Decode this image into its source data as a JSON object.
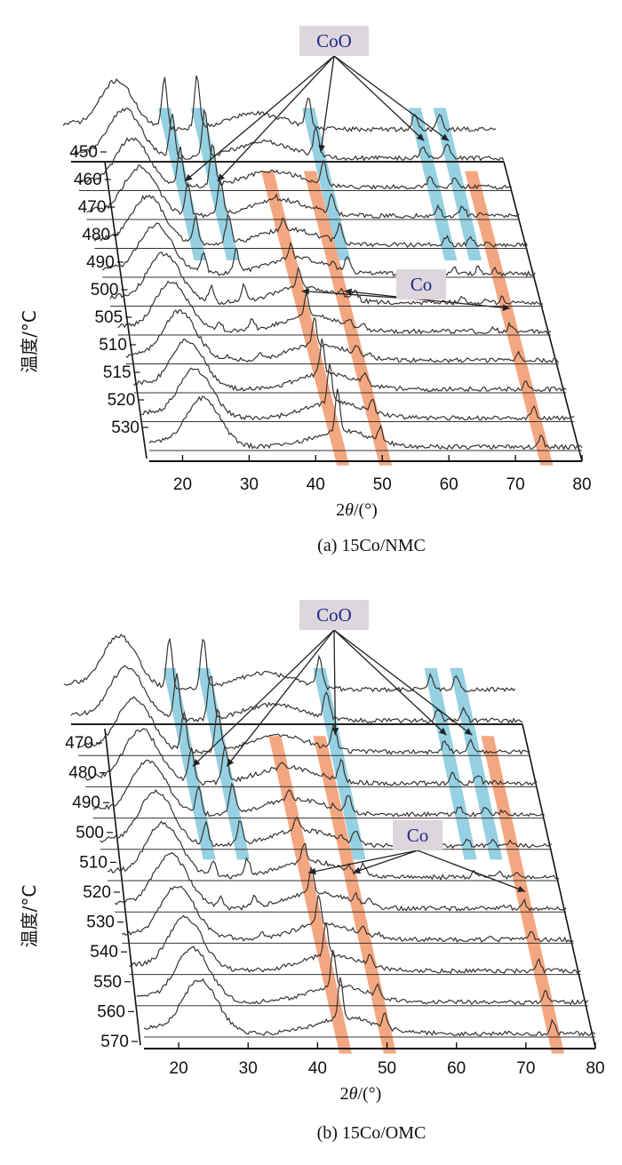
{
  "chart_data": [
    {
      "type": "line",
      "panel_id": "a",
      "caption": "(a) 15Co/NMC",
      "xlabel_prefix": "2",
      "xlabel_theta": "θ",
      "xlabel_suffix": "/(°)",
      "ylabel": "温度/°C",
      "xlim": [
        15,
        80
      ],
      "xticks": [
        "20",
        "30",
        "40",
        "50",
        "60",
        "70",
        "80"
      ],
      "temperatures": [
        "450",
        "460",
        "470",
        "480",
        "490",
        "500",
        "505",
        "510",
        "515",
        "520",
        "530"
      ],
      "annotations": [
        {
          "label": "CoO",
          "phase": "CoO",
          "peaks_2theta": [
            30.2,
            35.1,
            51.8,
            67.8,
            71.5
          ]
        },
        {
          "label": "Co",
          "phase": "Co",
          "peaks_2theta": [
            43.3,
            49.7,
            73.9
          ]
        }
      ],
      "legend": "none",
      "grid": false
    },
    {
      "type": "line",
      "panel_id": "b",
      "caption": "(b) 15Co/OMC",
      "xlabel_prefix": "2",
      "xlabel_theta": "θ",
      "xlabel_suffix": "/(°)",
      "ylabel": "温度/°C",
      "xlim": [
        15,
        80
      ],
      "xticks": [
        "20",
        "30",
        "40",
        "50",
        "60",
        "70",
        "80"
      ],
      "temperatures": [
        "470",
        "480",
        "490",
        "500",
        "510",
        "520",
        "530",
        "540",
        "550",
        "560",
        "570"
      ],
      "annotations": [
        {
          "label": "CoO",
          "phase": "CoO",
          "peaks_2theta": [
            30.2,
            35.1,
            51.8,
            67.8,
            71.5
          ]
        },
        {
          "label": "Co",
          "phase": "Co",
          "peaks_2theta": [
            43.3,
            49.7,
            73.9
          ]
        }
      ],
      "legend": "none",
      "grid": false
    }
  ],
  "colors": {
    "curve": "#3a3330",
    "axis": "#111111",
    "coo_band": "#8fcfe0",
    "co_band": "#f2a27a",
    "annotation_box": "#ddd6dc",
    "annotation_text": "#1f2a8a"
  }
}
